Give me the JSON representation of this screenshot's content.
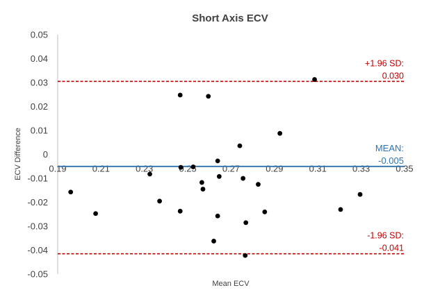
{
  "chart_data": {
    "type": "scatter",
    "title": "Short Axis ECV",
    "xlabel": "Mean ECV",
    "ylabel": "ECV Difference",
    "xlim": [
      0.19,
      0.35
    ],
    "ylim": [
      -0.05,
      0.05
    ],
    "x_ticks": [
      "0.19",
      "0.21",
      "0.23",
      "0.25",
      "0.27",
      "0.29",
      "0.31",
      "0.33",
      "0.35"
    ],
    "y_ticks": [
      "0.05",
      "0.04",
      "0.03",
      "0.02",
      "0.01",
      "0",
      "-0.01",
      "-0.02",
      "-0.03",
      "-0.04",
      "-0.05"
    ],
    "grid": false,
    "points": [
      {
        "x": 0.196,
        "y": -0.0105
      },
      {
        "x": 0.2075,
        "y": -0.0195
      },
      {
        "x": 0.2325,
        "y": -0.003
      },
      {
        "x": 0.237,
        "y": -0.0143
      },
      {
        "x": 0.2465,
        "y": 0.03
      },
      {
        "x": 0.2465,
        "y": -0.0185
      },
      {
        "x": 0.2468,
        "y": -0.0002
      },
      {
        "x": 0.2525,
        "y": 0.0
      },
      {
        "x": 0.2565,
        "y": -0.0065
      },
      {
        "x": 0.257,
        "y": -0.0093
      },
      {
        "x": 0.2595,
        "y": 0.0295
      },
      {
        "x": 0.262,
        "y": -0.031
      },
      {
        "x": 0.2638,
        "y": 0.0025
      },
      {
        "x": 0.2638,
        "y": -0.0205
      },
      {
        "x": 0.2645,
        "y": -0.004
      },
      {
        "x": 0.274,
        "y": 0.0088
      },
      {
        "x": 0.2755,
        "y": -0.0048
      },
      {
        "x": 0.2768,
        "y": -0.0233
      },
      {
        "x": 0.2765,
        "y": -0.037
      },
      {
        "x": 0.2825,
        "y": -0.0073
      },
      {
        "x": 0.2855,
        "y": -0.0188
      },
      {
        "x": 0.2925,
        "y": 0.014
      },
      {
        "x": 0.3085,
        "y": 0.0365
      },
      {
        "x": 0.3205,
        "y": -0.0178
      },
      {
        "x": 0.3295,
        "y": -0.0115
      }
    ],
    "lines": [
      {
        "name": "upper",
        "y": 0.0305,
        "style": "dashed",
        "color": "#c00000",
        "label_line1": "+1.96 SD:",
        "label_line2": "0.030"
      },
      {
        "name": "mean",
        "y": -0.005,
        "style": "solid",
        "color": "#2e75b6",
        "label_line1": "MEAN:",
        "label_line2": "-0.005"
      },
      {
        "name": "lower",
        "y": -0.0415,
        "style": "dashed",
        "color": "#c00000",
        "label_line1": "-1.96 SD:",
        "label_line2": "-0.041"
      }
    ]
  }
}
